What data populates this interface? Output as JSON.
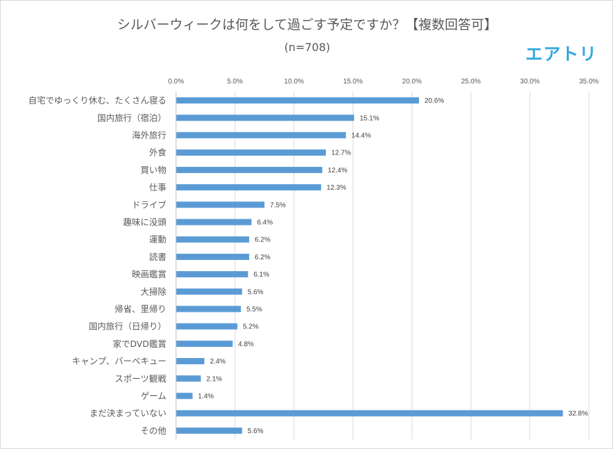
{
  "logo_text": "エアトリ",
  "chart_data": {
    "type": "bar",
    "orientation": "horizontal",
    "title": "シルバーウィークは何をして過ごす予定ですか？【複数回答可】",
    "subtitle": "(n=708)",
    "xlabel": "",
    "ylabel": "",
    "xlim": [
      0,
      35
    ],
    "x_ticks": [
      "0.0%",
      "5.0%",
      "10.0%",
      "15.0%",
      "20.0%",
      "25.0%",
      "30.0%",
      "35.0%"
    ],
    "grid": "vertical",
    "legend": "none",
    "bar_color": "#5b9bd5",
    "categories": [
      "自宅でゆっくり休む、たくさん寝る",
      "国内旅行（宿泊）",
      "海外旅行",
      "外食",
      "買い物",
      "仕事",
      "ドライブ",
      "趣味に没頭",
      "運動",
      "読書",
      "映画鑑賞",
      "大掃除",
      "帰省、里帰り",
      "国内旅行（日帰り）",
      "家でDVD鑑賞",
      "キャンプ、バーベキュー",
      "スポーツ観戦",
      "ゲーム",
      "まだ決まっていない",
      "その他"
    ],
    "values": [
      20.6,
      15.1,
      14.4,
      12.7,
      12.4,
      12.3,
      7.5,
      6.4,
      6.2,
      6.2,
      6.1,
      5.6,
      5.5,
      5.2,
      4.8,
      2.4,
      2.1,
      1.4,
      32.8,
      5.6
    ],
    "value_labels": [
      "20.6%",
      "15.1%",
      "14.4%",
      "12.7%",
      "12.4%",
      "12.3%",
      "7.5%",
      "6.4%",
      "6.2%",
      "6.2%",
      "6.1%",
      "5.6%",
      "5.5%",
      "5.2%",
      "4.8%",
      "2.4%",
      "2.1%",
      "1.4%",
      "32.8%",
      "5.6%"
    ]
  }
}
